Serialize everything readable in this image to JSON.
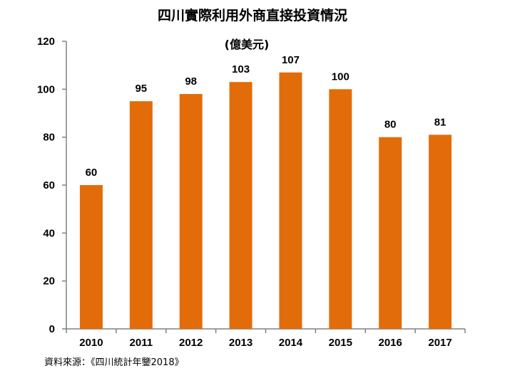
{
  "chart_data": {
    "type": "bar",
    "title": "四川實際利用外商直接投資情況",
    "subtitle": "(億美元)",
    "categories": [
      "2010",
      "2011",
      "2012",
      "2013",
      "2014",
      "2015",
      "2016",
      "2017"
    ],
    "values": [
      60,
      95,
      98,
      103,
      107,
      100,
      80,
      81
    ],
    "data_labels": [
      "60",
      "95",
      "98",
      "103",
      "107",
      "100",
      "80",
      "81"
    ],
    "ylim": [
      0,
      120
    ],
    "yticks": [
      0,
      20,
      40,
      60,
      80,
      100,
      120
    ],
    "xlabel": "",
    "ylabel": "",
    "grid": false,
    "bar_color": "#E36C0A",
    "source": "資料來源：《四川統計年鑒2018》"
  }
}
